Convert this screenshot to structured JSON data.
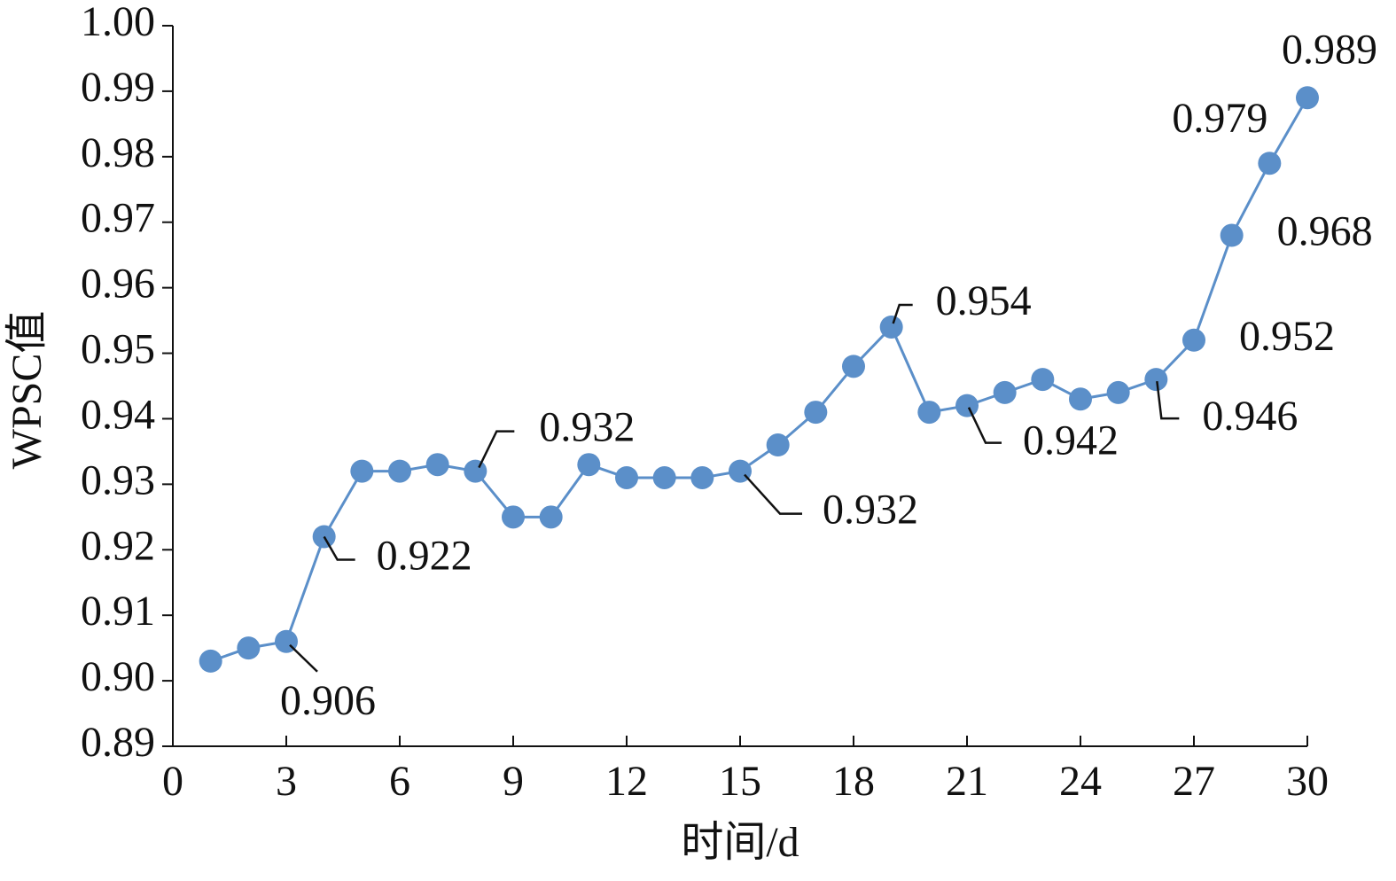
{
  "chart_data": {
    "type": "line",
    "x_label": "时间/d",
    "y_label": "WPSC值",
    "x": [
      1,
      2,
      3,
      4,
      5,
      6,
      7,
      8,
      9,
      10,
      11,
      12,
      13,
      14,
      15,
      16,
      17,
      18,
      19,
      20,
      21,
      22,
      23,
      24,
      25,
      26,
      27,
      28,
      29,
      30
    ],
    "series": [
      {
        "color": "#5b8fc9",
        "values": [
          0.903,
          0.905,
          0.906,
          0.922,
          0.932,
          0.932,
          0.933,
          0.932,
          0.925,
          0.925,
          0.933,
          0.931,
          0.931,
          0.931,
          0.932,
          0.936,
          0.941,
          0.948,
          0.954,
          0.941,
          0.942,
          0.944,
          0.946,
          0.943,
          0.944,
          0.946,
          0.952,
          0.968,
          0.979,
          0.989
        ],
        "value_labels": [
          null,
          null,
          "0.906",
          "0.922",
          null,
          null,
          null,
          "0.932",
          null,
          null,
          null,
          null,
          null,
          null,
          "0.932",
          null,
          null,
          null,
          "0.954",
          null,
          "0.942",
          null,
          null,
          null,
          null,
          "0.946",
          "0.952",
          "0.968",
          "0.979",
          "0.989"
        ]
      }
    ],
    "xlim": [
      0,
      30
    ],
    "xticks": [
      0,
      3,
      6,
      9,
      12,
      15,
      18,
      21,
      24,
      27,
      30
    ],
    "ylim": [
      0.89,
      1.0
    ],
    "yticks": [
      0.89,
      {
        "value": 0.9,
        "label": "0.90"
      },
      0.91,
      0.92,
      0.93,
      0.94,
      0.95,
      0.96,
      0.97,
      0.98,
      0.99,
      {
        "value": 1.0,
        "label": "1.00"
      }
    ],
    "grid": false
  }
}
